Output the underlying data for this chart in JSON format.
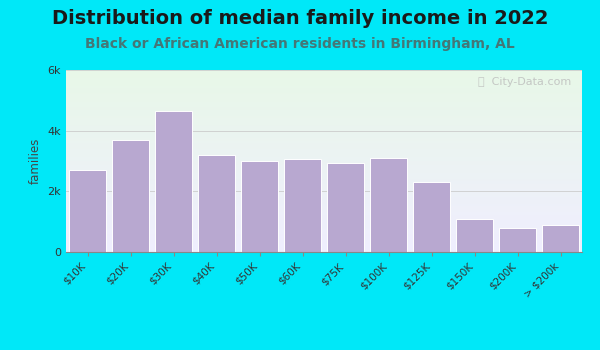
{
  "title": "Distribution of median family income in 2022",
  "subtitle": "Black or African American residents in Birmingham, AL",
  "categories": [
    "$10K",
    "$20K",
    "$30K",
    "$40K",
    "$50K",
    "$60K",
    "$75K",
    "$100K",
    "$125K",
    "$150K",
    "$200K",
    "> $200k"
  ],
  "values": [
    2700,
    3700,
    4650,
    3200,
    3000,
    3050,
    2950,
    3100,
    2300,
    1100,
    800,
    900
  ],
  "bar_color": "#b8a8d0",
  "bar_edge_color": "#ffffff",
  "ylabel": "families",
  "ylim": [
    0,
    6000
  ],
  "yticks": [
    0,
    2000,
    4000,
    6000
  ],
  "ytick_labels": [
    "0",
    "2k",
    "4k",
    "6k"
  ],
  "background_outer": "#00e8f8",
  "background_inner_top": "#e8f8e8",
  "background_inner_bottom": "#f0eeff",
  "title_fontsize": 14,
  "subtitle_fontsize": 10,
  "title_color": "#1a1a1a",
  "subtitle_color": "#447777",
  "watermark": "ⓘ  City-Data.com"
}
